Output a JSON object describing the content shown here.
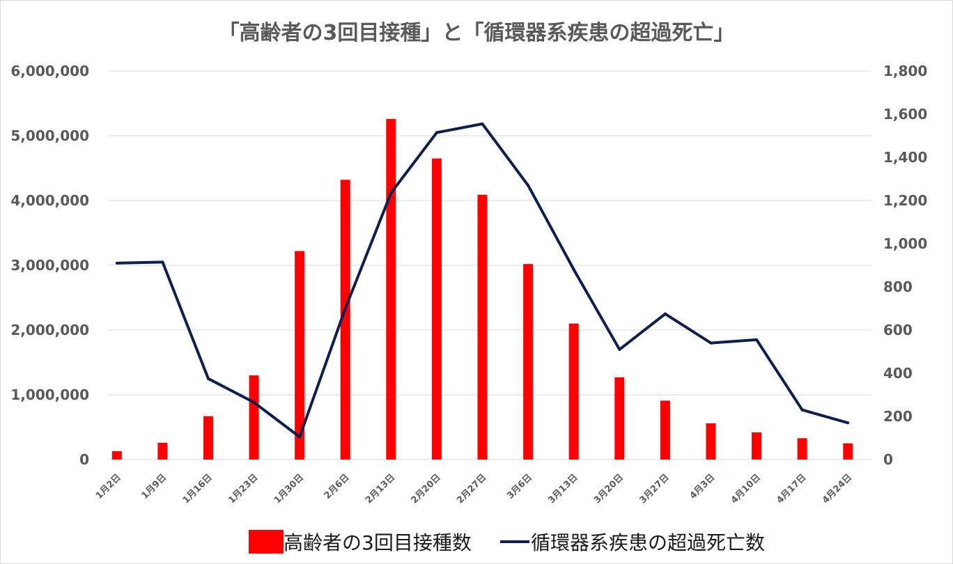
{
  "chart_data": {
    "type": "bar",
    "title": "「高齢者の3回目接種」と「循環器系疾患の超過死亡」",
    "categories": [
      "1月2日",
      "1月9日",
      "1月16日",
      "1月23日",
      "1月30日",
      "2月6日",
      "2月13日",
      "2月20日",
      "2月27日",
      "3月6日",
      "3月13日",
      "3月20日",
      "3月27日",
      "4月3日",
      "4月10日",
      "4月17日",
      "4月24日"
    ],
    "series": [
      {
        "name": "高齢者の3回目接種数",
        "type": "bar",
        "axis": "left",
        "color": "#ff0000",
        "values": [
          130000,
          260000,
          670000,
          1300000,
          3220000,
          4320000,
          5260000,
          4650000,
          4090000,
          3020000,
          2100000,
          1270000,
          910000,
          560000,
          420000,
          330000,
          250000
        ]
      },
      {
        "name": "循環器系疾患の超過死亡数",
        "type": "line",
        "axis": "right",
        "color": "#0d1f4f",
        "values": [
          910,
          915,
          375,
          265,
          105,
          700,
          1235,
          1515,
          1555,
          1270,
          880,
          510,
          675,
          540,
          555,
          230,
          170
        ]
      }
    ],
    "y_left": {
      "min": 0,
      "max": 6000000,
      "ticks": [
        "0",
        "1,000,000",
        "2,000,000",
        "3,000,000",
        "4,000,000",
        "5,000,000",
        "6,000,000"
      ]
    },
    "y_right": {
      "min": 0,
      "max": 1800,
      "ticks": [
        "0",
        "200",
        "400",
        "600",
        "800",
        "1,000",
        "1,200",
        "1,400",
        "1,600",
        "1,800"
      ]
    },
    "grid": true,
    "legend_position": "bottom"
  }
}
